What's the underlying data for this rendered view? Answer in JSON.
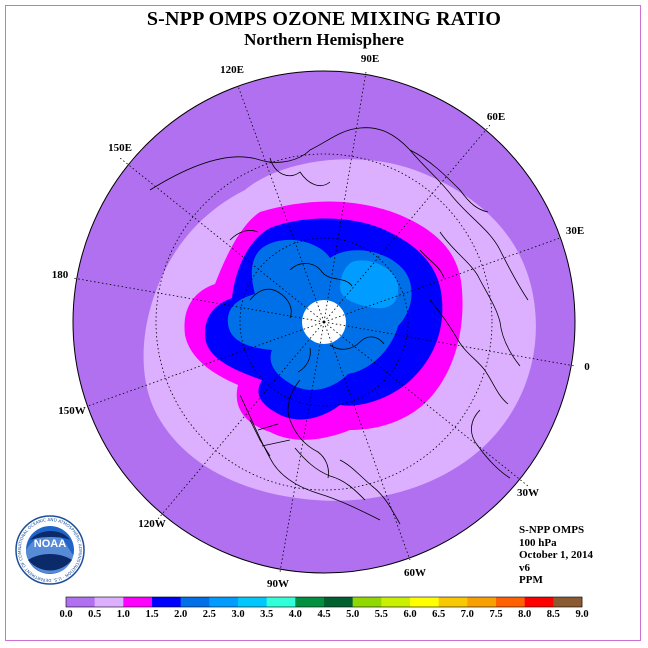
{
  "header": {
    "title": "S-NPP OMPS OZONE MIXING RATIO",
    "subtitle": "Northern Hemisphere"
  },
  "map": {
    "projection": "north-polar-stereographic",
    "longitude_labels": [
      "90E",
      "60E",
      "30E",
      "0",
      "30W",
      "60W",
      "90W",
      "120W",
      "150W",
      "180",
      "150E",
      "120E"
    ],
    "data_value_field": "ozone mixing ratio",
    "polar_gap": "white (no data)"
  },
  "info": {
    "instrument": "S-NPP OMPS",
    "level": "100 hPa",
    "date": "October 1, 2014",
    "version": "v6",
    "units": "PPM"
  },
  "colorbar": {
    "ticks": [
      "0.0",
      "0.5",
      "1.0",
      "1.5",
      "2.0",
      "2.5",
      "3.0",
      "3.5",
      "4.0",
      "4.5",
      "5.0",
      "5.5",
      "6.0",
      "6.5",
      "7.0",
      "7.5",
      "8.0",
      "8.5",
      "9.0"
    ],
    "colors": [
      "#b070f0",
      "#dcb0ff",
      "#ff00ff",
      "#0000ff",
      "#0070e8",
      "#009cff",
      "#00c8ff",
      "#30ffd8",
      "#009040",
      "#006030",
      "#90d800",
      "#c8f000",
      "#ffff00",
      "#f8c800",
      "#f8a000",
      "#ff6000",
      "#ff0000",
      "#8a5a32"
    ]
  },
  "logo": {
    "text": "NOAA",
    "ring_text": "NATIONAL OCEANIC AND ATMOSPHERIC ADMINISTRATION · U.S. DEPARTMENT OF COMMERCE"
  }
}
